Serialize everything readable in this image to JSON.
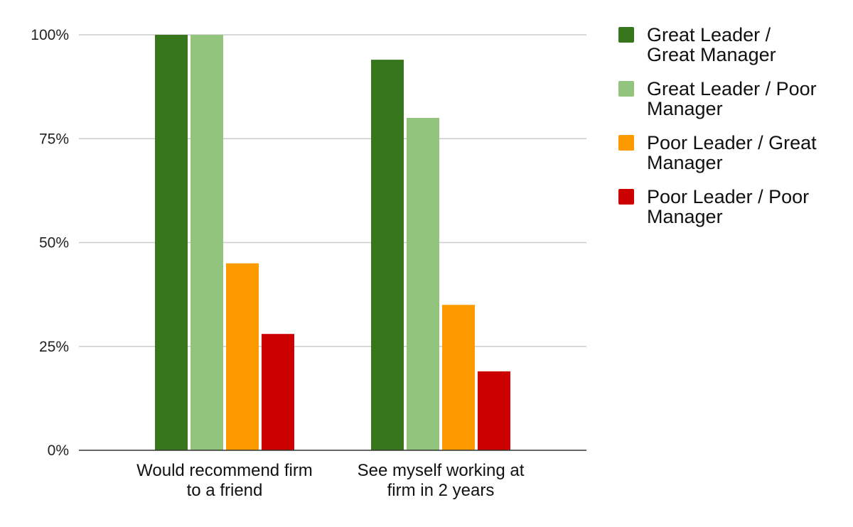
{
  "chart_data": {
    "type": "bar",
    "categories": [
      [
        "Would recommend firm",
        "to a friend"
      ],
      [
        "See myself working at",
        "firm in 2 years"
      ]
    ],
    "series": [
      {
        "name": [
          "Great Leader /",
          "Great Manager"
        ],
        "color": "#38761d",
        "values": [
          100,
          94
        ]
      },
      {
        "name": [
          "Great Leader / Poor",
          "Manager"
        ],
        "color": "#93c47d",
        "values": [
          100,
          80
        ]
      },
      {
        "name": [
          "Poor Leader / Great",
          "Manager"
        ],
        "color": "#ff9900",
        "values": [
          45,
          35
        ]
      },
      {
        "name": [
          "Poor Leader / Poor",
          "Manager"
        ],
        "color": "#cc0000",
        "values": [
          28,
          19
        ]
      }
    ],
    "yticks": [
      "0%",
      "25%",
      "50%",
      "75%",
      "100%"
    ],
    "ytick_values": [
      0,
      25,
      50,
      75,
      100
    ],
    "ylim": [
      0,
      100
    ],
    "grid": true,
    "legend_position": "right",
    "title": "",
    "xlabel": "",
    "ylabel": ""
  }
}
